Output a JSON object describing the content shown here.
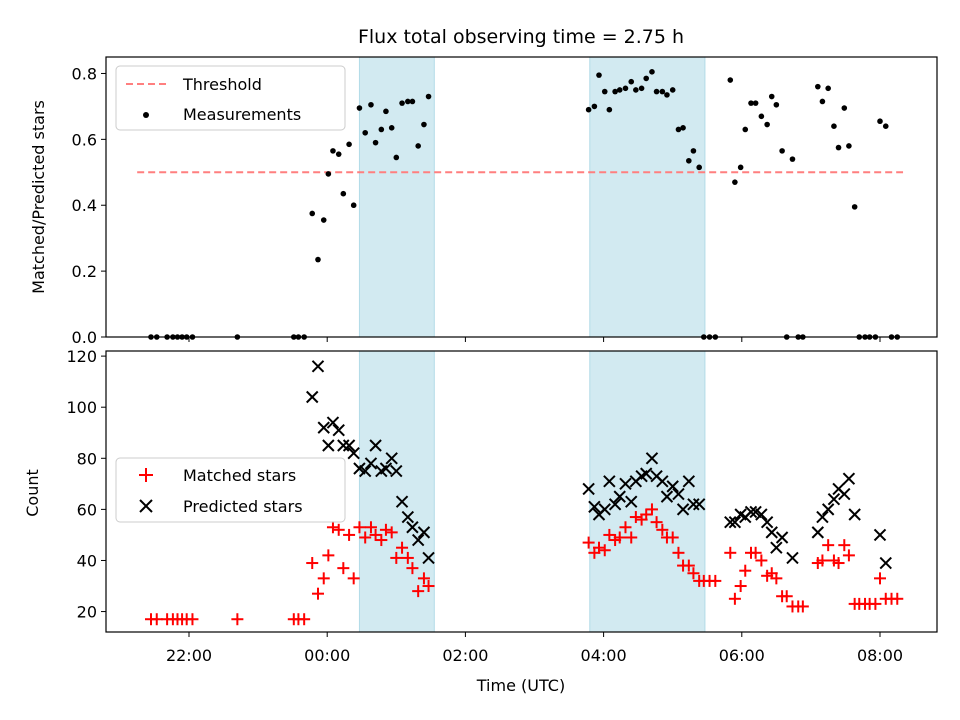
{
  "chart_data": [
    {
      "type": "scatter",
      "title": "Flux total observing time = 2.75 h",
      "ylabel": "Matched/Predicted stars",
      "ylim": [
        0,
        0.85
      ],
      "yticks": [
        "0.0",
        "0.2",
        "0.4",
        "0.6",
        "0.8"
      ],
      "threshold": {
        "name": "Threshold",
        "value": 0.5,
        "x_range": [
          "21:15",
          "08:20"
        ],
        "color": "#ff7f7f"
      },
      "legend_position": "top-left",
      "shaded_intervals": [
        [
          "00:28",
          "01:33"
        ],
        [
          "03:48",
          "05:28"
        ]
      ],
      "shade_color": "#add8e6",
      "series": [
        {
          "name": "Measurements",
          "color": "#000000",
          "points": [
            [
              "21:27",
              0
            ],
            [
              "21:32",
              0
            ],
            [
              "21:41",
              0
            ],
            [
              "21:46",
              0
            ],
            [
              "21:50",
              0
            ],
            [
              "21:54",
              0
            ],
            [
              "21:58",
              0
            ],
            [
              "22:03",
              0
            ],
            [
              "22:42",
              0
            ],
            [
              "23:31",
              0
            ],
            [
              "23:35",
              0
            ],
            [
              "23:40",
              0
            ],
            [
              "23:47",
              0.375
            ],
            [
              "23:52",
              0.235
            ],
            [
              "23:57",
              0.355
            ],
            [
              "00:01",
              0.495
            ],
            [
              "00:05",
              0.565
            ],
            [
              "00:10",
              0.555
            ],
            [
              "00:14",
              0.435
            ],
            [
              "00:19",
              0.585
            ],
            [
              "00:23",
              0.4
            ],
            [
              "00:28",
              0.695
            ],
            [
              "00:33",
              0.62
            ],
            [
              "00:38",
              0.705
            ],
            [
              "00:42",
              0.59
            ],
            [
              "00:47",
              0.63
            ],
            [
              "00:51",
              0.685
            ],
            [
              "00:56",
              0.635
            ],
            [
              "01:00",
              0.545
            ],
            [
              "01:05",
              0.71
            ],
            [
              "01:10",
              0.715
            ],
            [
              "01:14",
              0.715
            ],
            [
              "01:19",
              0.58
            ],
            [
              "01:24",
              0.645
            ],
            [
              "01:28",
              0.73
            ],
            [
              "03:47",
              0.69
            ],
            [
              "03:52",
              0.7
            ],
            [
              "03:56",
              0.795
            ],
            [
              "04:01",
              0.745
            ],
            [
              "04:05",
              0.69
            ],
            [
              "04:10",
              0.745
            ],
            [
              "04:14",
              0.75
            ],
            [
              "04:19",
              0.755
            ],
            [
              "04:24",
              0.775
            ],
            [
              "04:28",
              0.75
            ],
            [
              "04:33",
              0.755
            ],
            [
              "04:37",
              0.785
            ],
            [
              "04:42",
              0.805
            ],
            [
              "04:46",
              0.745
            ],
            [
              "04:51",
              0.745
            ],
            [
              "04:55",
              0.735
            ],
            [
              "05:00",
              0.75
            ],
            [
              "05:05",
              0.63
            ],
            [
              "05:09",
              0.635
            ],
            [
              "05:14",
              0.535
            ],
            [
              "05:18",
              0.565
            ],
            [
              "05:23",
              0.515
            ],
            [
              "05:27",
              0
            ],
            [
              "05:32",
              0
            ],
            [
              "05:37",
              0
            ],
            [
              "05:50",
              0.78
            ],
            [
              "05:54",
              0.47
            ],
            [
              "05:59",
              0.515
            ],
            [
              "06:03",
              0.63
            ],
            [
              "06:08",
              0.71
            ],
            [
              "06:12",
              0.71
            ],
            [
              "06:17",
              0.67
            ],
            [
              "06:22",
              0.645
            ],
            [
              "06:26",
              0.73
            ],
            [
              "06:30",
              0.705
            ],
            [
              "06:35",
              0.565
            ],
            [
              "06:39",
              0
            ],
            [
              "06:44",
              0.54
            ],
            [
              "06:49",
              0
            ],
            [
              "06:53",
              0
            ],
            [
              "07:06",
              0.76
            ],
            [
              "07:10",
              0.715
            ],
            [
              "07:15",
              0.755
            ],
            [
              "07:20",
              0.64
            ],
            [
              "07:24",
              0.575
            ],
            [
              "07:29",
              0.695
            ],
            [
              "07:33",
              0.58
            ],
            [
              "07:38",
              0.395
            ],
            [
              "07:42",
              0
            ],
            [
              "07:47",
              0
            ],
            [
              "07:51",
              0
            ],
            [
              "07:56",
              0
            ],
            [
              "08:00",
              0.655
            ],
            [
              "08:05",
              0.64
            ],
            [
              "08:10",
              0
            ],
            [
              "08:15",
              0
            ]
          ]
        }
      ]
    },
    {
      "type": "scatter",
      "xlabel": "Time (UTC)",
      "ylabel": "Count",
      "ylim": [
        12,
        122
      ],
      "yticks": [
        "20",
        "40",
        "60",
        "80",
        "100",
        "120"
      ],
      "xticks": [
        "22:00",
        "00:00",
        "02:00",
        "04:00",
        "06:00",
        "08:00"
      ],
      "legend_position": "center-left",
      "shaded_intervals": [
        [
          "00:28",
          "01:33"
        ],
        [
          "03:48",
          "05:28"
        ]
      ],
      "series": [
        {
          "name": "Matched stars",
          "marker": "plus",
          "color": "#ff0000",
          "points": [
            [
              "21:27",
              17
            ],
            [
              "21:32",
              17
            ],
            [
              "21:41",
              17
            ],
            [
              "21:46",
              17
            ],
            [
              "21:50",
              17
            ],
            [
              "21:54",
              17
            ],
            [
              "21:58",
              17
            ],
            [
              "22:03",
              17
            ],
            [
              "22:42",
              17
            ],
            [
              "23:31",
              17
            ],
            [
              "23:35",
              17
            ],
            [
              "23:40",
              17
            ],
            [
              "23:47",
              39
            ],
            [
              "23:52",
              27
            ],
            [
              "23:57",
              33
            ],
            [
              "00:01",
              42
            ],
            [
              "00:05",
              53
            ],
            [
              "00:10",
              52
            ],
            [
              "00:14",
              37
            ],
            [
              "00:19",
              50
            ],
            [
              "00:23",
              33
            ],
            [
              "00:28",
              53
            ],
            [
              "00:33",
              49
            ],
            [
              "00:38",
              53
            ],
            [
              "00:42",
              50
            ],
            [
              "00:47",
              48
            ],
            [
              "00:51",
              52
            ],
            [
              "00:56",
              51
            ],
            [
              "01:00",
              41
            ],
            [
              "01:05",
              45
            ],
            [
              "01:10",
              41
            ],
            [
              "01:14",
              37
            ],
            [
              "01:19",
              28
            ],
            [
              "01:24",
              33
            ],
            [
              "01:28",
              30
            ],
            [
              "03:47",
              47
            ],
            [
              "03:52",
              43
            ],
            [
              "03:56",
              45
            ],
            [
              "04:01",
              44
            ],
            [
              "04:05",
              50
            ],
            [
              "04:10",
              48
            ],
            [
              "04:14",
              49
            ],
            [
              "04:19",
              53
            ],
            [
              "04:24",
              49
            ],
            [
              "04:28",
              57
            ],
            [
              "04:33",
              56
            ],
            [
              "04:37",
              58
            ],
            [
              "04:42",
              60
            ],
            [
              "04:46",
              55
            ],
            [
              "04:51",
              52
            ],
            [
              "04:55",
              49
            ],
            [
              "05:00",
              49
            ],
            [
              "05:05",
              43
            ],
            [
              "05:09",
              38
            ],
            [
              "05:14",
              38
            ],
            [
              "05:18",
              35
            ],
            [
              "05:23",
              32
            ],
            [
              "05:27",
              32
            ],
            [
              "05:32",
              32
            ],
            [
              "05:37",
              32
            ],
            [
              "05:50",
              43
            ],
            [
              "05:54",
              25
            ],
            [
              "05:59",
              30
            ],
            [
              "06:03",
              36
            ],
            [
              "06:08",
              43
            ],
            [
              "06:12",
              43
            ],
            [
              "06:17",
              40
            ],
            [
              "06:22",
              34
            ],
            [
              "06:26",
              35
            ],
            [
              "06:30",
              33
            ],
            [
              "06:35",
              26
            ],
            [
              "06:39",
              26
            ],
            [
              "06:44",
              22
            ],
            [
              "06:49",
              22
            ],
            [
              "06:53",
              22
            ],
            [
              "07:06",
              39
            ],
            [
              "07:10",
              40
            ],
            [
              "07:15",
              46
            ],
            [
              "07:20",
              40
            ],
            [
              "07:24",
              39
            ],
            [
              "07:29",
              46
            ],
            [
              "07:33",
              42
            ],
            [
              "07:38",
              23
            ],
            [
              "07:42",
              23
            ],
            [
              "07:47",
              23
            ],
            [
              "07:51",
              23
            ],
            [
              "07:56",
              23
            ],
            [
              "08:00",
              33
            ],
            [
              "08:05",
              25
            ],
            [
              "08:10",
              25
            ],
            [
              "08:15",
              25
            ]
          ]
        },
        {
          "name": "Predicted stars",
          "marker": "x",
          "color": "#000000",
          "points": [
            [
              "23:47",
              104
            ],
            [
              "23:52",
              116
            ],
            [
              "23:57",
              92
            ],
            [
              "00:01",
              85
            ],
            [
              "00:05",
              94
            ],
            [
              "00:10",
              91
            ],
            [
              "00:14",
              85
            ],
            [
              "00:19",
              85
            ],
            [
              "00:23",
              82
            ],
            [
              "00:28",
              76
            ],
            [
              "00:33",
              75
            ],
            [
              "00:38",
              78
            ],
            [
              "00:42",
              85
            ],
            [
              "00:47",
              75
            ],
            [
              "00:51",
              76
            ],
            [
              "00:56",
              80
            ],
            [
              "01:00",
              75
            ],
            [
              "01:05",
              63
            ],
            [
              "01:10",
              57
            ],
            [
              "01:14",
              53
            ],
            [
              "01:19",
              48
            ],
            [
              "01:24",
              51
            ],
            [
              "01:28",
              41
            ],
            [
              "03:47",
              68
            ],
            [
              "03:52",
              61
            ],
            [
              "03:56",
              58
            ],
            [
              "04:01",
              60
            ],
            [
              "04:05",
              71
            ],
            [
              "04:10",
              62
            ],
            [
              "04:14",
              65
            ],
            [
              "04:19",
              70
            ],
            [
              "04:24",
              63
            ],
            [
              "04:28",
              71
            ],
            [
              "04:33",
              73
            ],
            [
              "04:37",
              74
            ],
            [
              "04:42",
              80
            ],
            [
              "04:46",
              73
            ],
            [
              "04:51",
              71
            ],
            [
              "04:55",
              65
            ],
            [
              "05:00",
              69
            ],
            [
              "05:05",
              66
            ],
            [
              "05:09",
              60
            ],
            [
              "05:14",
              71
            ],
            [
              "05:18",
              62
            ],
            [
              "05:23",
              62
            ],
            [
              "05:50",
              55
            ],
            [
              "05:54",
              55
            ],
            [
              "05:59",
              58
            ],
            [
              "06:03",
              57
            ],
            [
              "06:08",
              59
            ],
            [
              "06:12",
              59
            ],
            [
              "06:17",
              58
            ],
            [
              "06:22",
              55
            ],
            [
              "06:26",
              51
            ],
            [
              "06:30",
              45
            ],
            [
              "06:35",
              49
            ],
            [
              "06:44",
              41
            ],
            [
              "07:06",
              51
            ],
            [
              "07:10",
              57
            ],
            [
              "07:15",
              60
            ],
            [
              "07:20",
              64
            ],
            [
              "07:24",
              68
            ],
            [
              "07:29",
              66
            ],
            [
              "07:33",
              72
            ],
            [
              "07:38",
              58
            ],
            [
              "08:00",
              50
            ],
            [
              "08:05",
              39
            ]
          ]
        }
      ]
    }
  ]
}
